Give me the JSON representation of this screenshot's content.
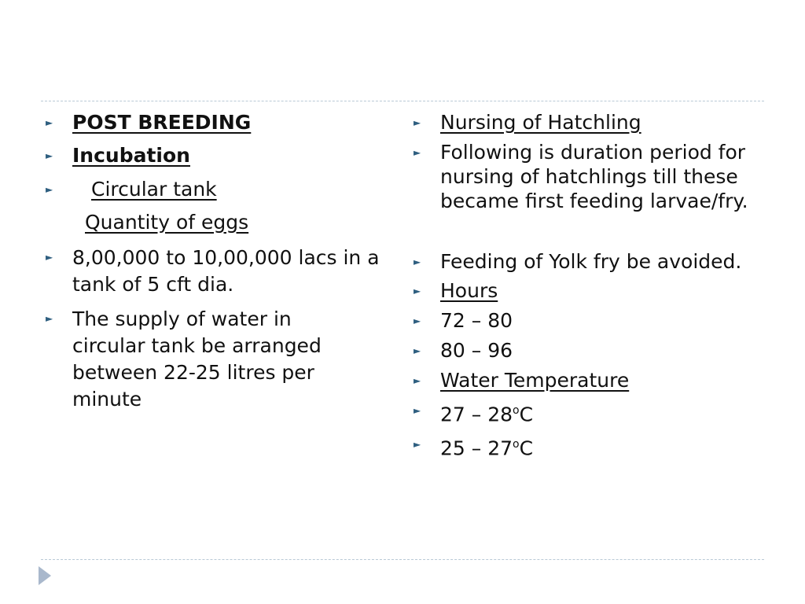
{
  "left": {
    "heading1": "POST BREEDING",
    "heading2": "Incubation",
    "item_circular_tank": "Circular tank",
    "item_quantity_eggs": "Quantity of eggs",
    "item_lacs": "8,00,000 to 10,00,000 lacs in a tank of 5 cft dia.",
    "item_supply": "The supply of water in circular tank be arranged between 22-25 litres per minute"
  },
  "right": {
    "nursing": "Nursing of Hatchling",
    "duration": "Following is duration period for nursing of hatchlings till these became first feeding larvae/fry.",
    "feeding": "Feeding of Yolk fry be avoided.",
    "hours": "Hours",
    "h1": "72 – 80",
    "h2": "80 – 96",
    "water_temp": "Water Temperature",
    "t1": "27 – 28",
    "t2": "25 – 27",
    "unit_sup": "o",
    "unit": "C"
  },
  "bullet_glyph": "►",
  "icons": {
    "bullet": "triangle-bullet-icon",
    "nav": "next-arrow-icon"
  },
  "colors": {
    "bullet": "#2f5f80",
    "rule": "#b9c9d6",
    "nav": "#a9b8cc"
  }
}
